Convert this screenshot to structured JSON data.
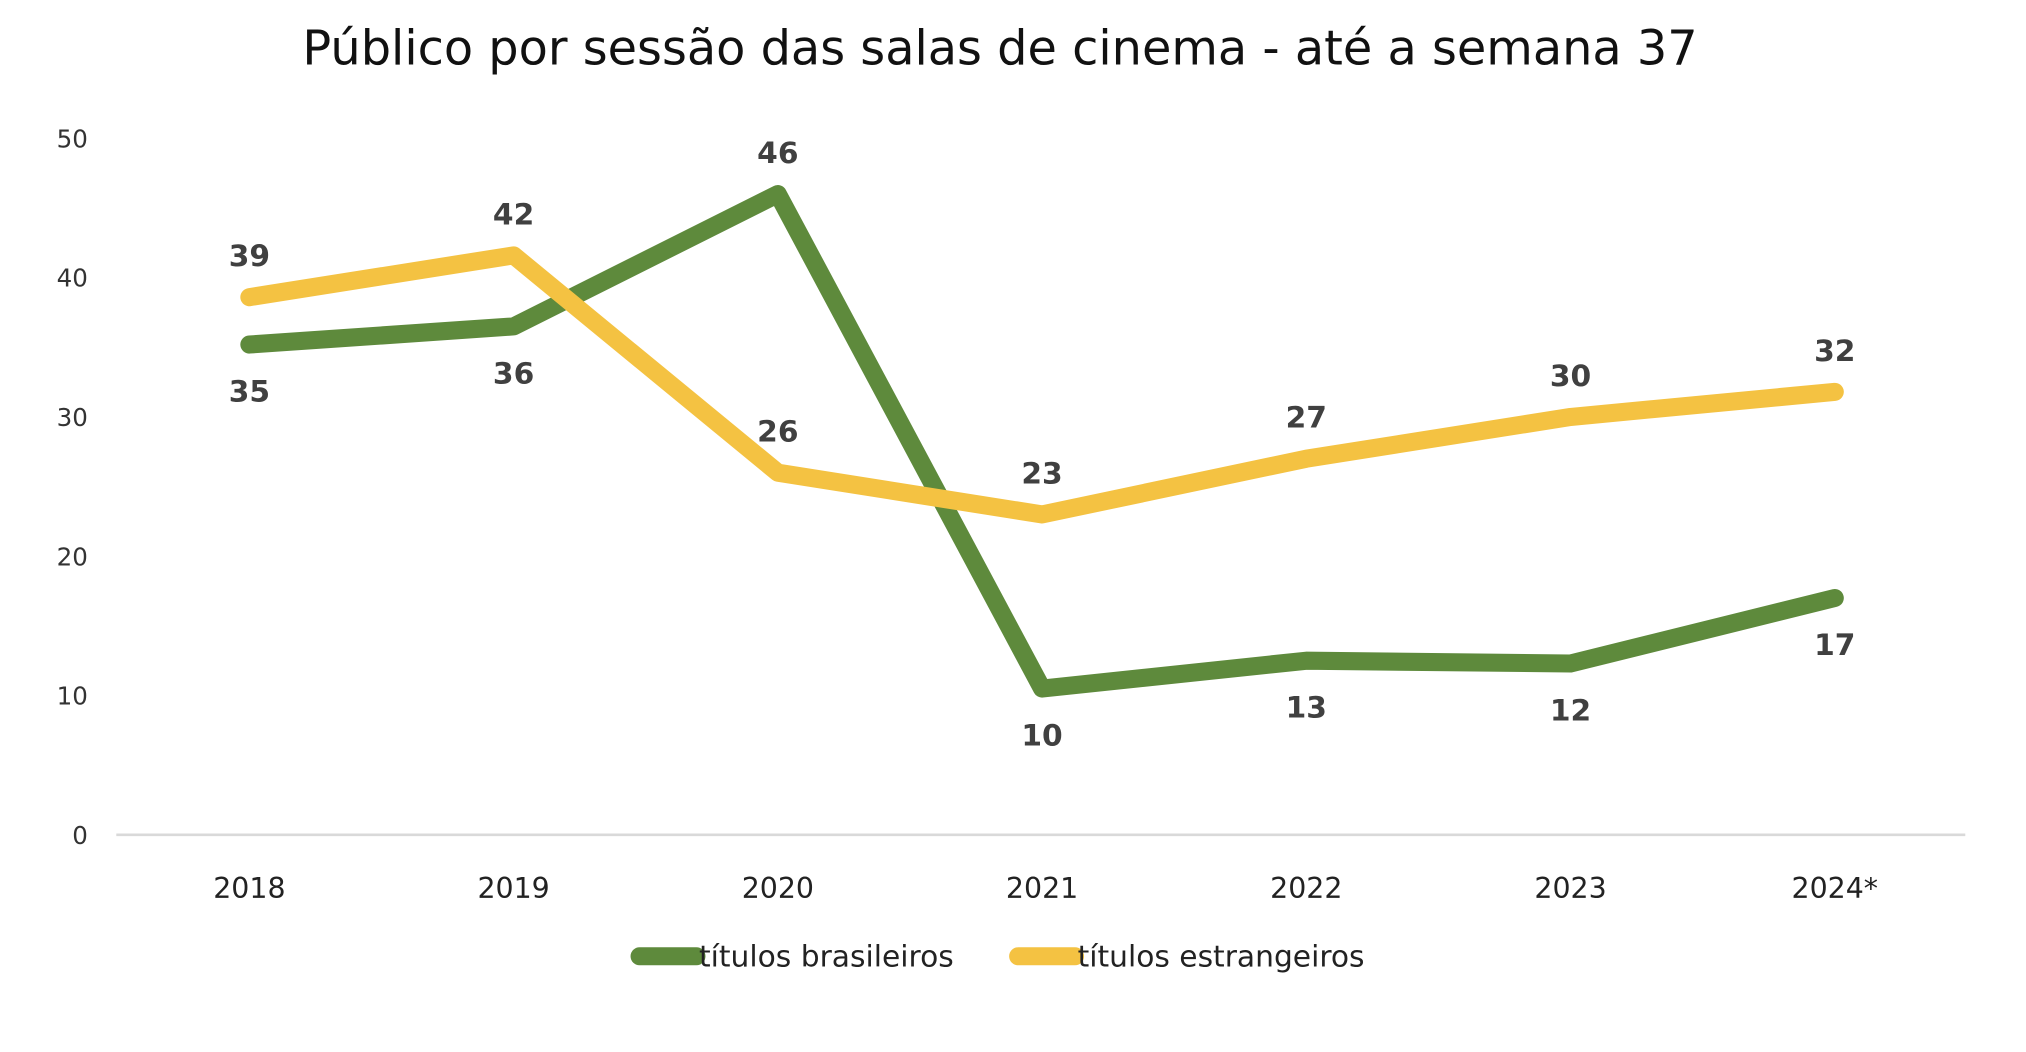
{
  "chart_data": {
    "type": "line",
    "title": "Público por sessão das salas de cinema - até a semana 37",
    "xlabel": "",
    "ylabel": "",
    "categories": [
      "2018",
      "2019",
      "2020",
      "2021",
      "2022",
      "2023",
      "2024*"
    ],
    "ylim": [
      0,
      50
    ],
    "yticks": [
      "0",
      "10",
      "20",
      "30",
      "40",
      "50"
    ],
    "grid": false,
    "legend_position": "bottom",
    "series": [
      {
        "name": "títulos brasileiros",
        "color": "#5E8A3C",
        "values": [
          35.2,
          36.5,
          46.0,
          10.5,
          12.5,
          12.3,
          17.0
        ],
        "labels": [
          "35",
          "36",
          "46",
          "10",
          "13",
          "12",
          "17"
        ]
      },
      {
        "name": "títulos estrangeiros",
        "color": "#F4C242",
        "values": [
          38.6,
          41.6,
          26.0,
          23.0,
          27.0,
          30.0,
          31.8
        ],
        "labels": [
          "39",
          "42",
          "26",
          "23",
          "27",
          "30",
          "32"
        ]
      }
    ]
  }
}
